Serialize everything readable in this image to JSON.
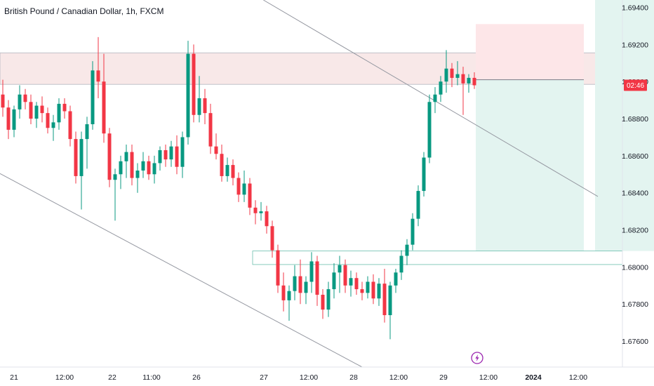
{
  "header": {
    "title": "British Pound / Canadian Dollar, 1h, FXCM"
  },
  "colors": {
    "up": "#089981",
    "down": "#f23645",
    "trendline": "#9598a1",
    "zone_fill": "#f8e8e8",
    "zone_border": "#b2b5be",
    "stop_fill": "#fde6e8",
    "target_fill": "#e3f4f0",
    "demand_border": "#6bbfae",
    "price_tag": "#f23645",
    "event_icon": "#9c27b0"
  },
  "chart_data": {
    "type": "candlestick",
    "symbol": "British Pound / Canadian Dollar",
    "interval": "1h",
    "source": "FXCM",
    "ylim": [
      1.6746,
      1.6944
    ],
    "y_ticks": [
      "1.69400",
      "1.69200",
      "1.69000",
      "1.68800",
      "1.68600",
      "1.68400",
      "1.68200",
      "1.68000",
      "1.67800",
      "1.67600"
    ],
    "x_ticks": [
      {
        "label": "21",
        "bar": 2,
        "bold": false
      },
      {
        "label": "12:00",
        "bar": 11,
        "bold": false
      },
      {
        "label": "22",
        "bar": 19.5,
        "bold": false
      },
      {
        "label": "11:00",
        "bar": 26.5,
        "bold": false
      },
      {
        "label": "26",
        "bar": 34.5,
        "bold": false
      },
      {
        "label": "27",
        "bar": 46.5,
        "bold": false
      },
      {
        "label": "12:00",
        "bar": 54.5,
        "bold": false
      },
      {
        "label": "28",
        "bar": 62.5,
        "bold": false
      },
      {
        "label": "12:00",
        "bar": 70.5,
        "bold": false
      },
      {
        "label": "29",
        "bar": 78.5,
        "bold": false
      },
      {
        "label": "12:00",
        "bar": 86.5,
        "bold": false
      },
      {
        "label": "2024",
        "bar": 94.5,
        "bold": true
      },
      {
        "label": "12:00",
        "bar": 102.5,
        "bold": false
      }
    ],
    "current_price_label": "02:46",
    "current_price": 1.6898,
    "candles": [
      [
        1.6893,
        1.6901,
        1.6881,
        1.6886
      ],
      [
        1.6886,
        1.689,
        1.6869,
        1.6874
      ],
      [
        1.6874,
        1.6887,
        1.687,
        1.6885
      ],
      [
        1.6885,
        1.6898,
        1.688,
        1.6893
      ],
      [
        1.6893,
        1.6896,
        1.6885,
        1.6889
      ],
      [
        1.6889,
        1.6893,
        1.6877,
        1.688
      ],
      [
        1.688,
        1.6889,
        1.6875,
        1.6887
      ],
      [
        1.6887,
        1.6892,
        1.6878,
        1.6883
      ],
      [
        1.6883,
        1.6886,
        1.6872,
        1.6875
      ],
      [
        1.6875,
        1.6882,
        1.6868,
        1.6878
      ],
      [
        1.6878,
        1.6891,
        1.6874,
        1.6888
      ],
      [
        1.6888,
        1.6891,
        1.688,
        1.6884
      ],
      [
        1.6884,
        1.6887,
        1.6865,
        1.6869
      ],
      [
        1.6869,
        1.6873,
        1.6845,
        1.6849
      ],
      [
        1.6849,
        1.6873,
        1.6831,
        1.6869
      ],
      [
        1.6869,
        1.6881,
        1.6853,
        1.6877
      ],
      [
        1.6877,
        1.6911,
        1.6874,
        1.6906
      ],
      [
        1.6906,
        1.6924,
        1.6891,
        1.69
      ],
      [
        1.69,
        1.6915,
        1.6867,
        1.6872
      ],
      [
        1.6872,
        1.6875,
        1.6843,
        1.6847
      ],
      [
        1.6847,
        1.6853,
        1.6825,
        1.685
      ],
      [
        1.685,
        1.686,
        1.6842,
        1.6857
      ],
      [
        1.6857,
        1.6866,
        1.6848,
        1.6862
      ],
      [
        1.6862,
        1.6866,
        1.6844,
        1.6848
      ],
      [
        1.6848,
        1.6856,
        1.684,
        1.6852
      ],
      [
        1.6852,
        1.6862,
        1.6848,
        1.6857
      ],
      [
        1.6857,
        1.686,
        1.6847,
        1.685
      ],
      [
        1.685,
        1.686,
        1.6845,
        1.6856
      ],
      [
        1.6856,
        1.6865,
        1.6852,
        1.6863
      ],
      [
        1.6863,
        1.6866,
        1.6854,
        1.6858
      ],
      [
        1.6858,
        1.6868,
        1.6854,
        1.6865
      ],
      [
        1.6865,
        1.6871,
        1.685,
        1.6854
      ],
      [
        1.6854,
        1.6873,
        1.6848,
        1.687
      ],
      [
        1.687,
        1.6922,
        1.6866,
        1.6915
      ],
      [
        1.6915,
        1.692,
        1.6878,
        1.6882
      ],
      [
        1.6882,
        1.6903,
        1.6878,
        1.6891
      ],
      [
        1.6891,
        1.6896,
        1.6877,
        1.6883
      ],
      [
        1.6883,
        1.6888,
        1.6861,
        1.6865
      ],
      [
        1.6865,
        1.6872,
        1.6858,
        1.6861
      ],
      [
        1.6861,
        1.6866,
        1.6846,
        1.6849
      ],
      [
        1.6849,
        1.6859,
        1.6846,
        1.6855
      ],
      [
        1.6855,
        1.6858,
        1.6844,
        1.6848
      ],
      [
        1.6848,
        1.6851,
        1.6835,
        1.6839
      ],
      [
        1.6839,
        1.6852,
        1.6835,
        1.6845
      ],
      [
        1.6845,
        1.6848,
        1.6828,
        1.6832
      ],
      [
        1.6832,
        1.6836,
        1.6823,
        1.6829
      ],
      [
        1.6829,
        1.6835,
        1.6825,
        1.683
      ],
      [
        1.683,
        1.6833,
        1.6818,
        1.6822
      ],
      [
        1.6822,
        1.6825,
        1.6805,
        1.6809
      ],
      [
        1.6809,
        1.6812,
        1.6786,
        1.679
      ],
      [
        1.679,
        1.6797,
        1.6776,
        1.6782
      ],
      [
        1.6782,
        1.679,
        1.6771,
        1.6787
      ],
      [
        1.6787,
        1.6801,
        1.6782,
        1.6795
      ],
      [
        1.6795,
        1.6804,
        1.678,
        1.6786
      ],
      [
        1.6786,
        1.6795,
        1.678,
        1.6792
      ],
      [
        1.6792,
        1.6808,
        1.6786,
        1.6803
      ],
      [
        1.6803,
        1.6806,
        1.6779,
        1.6785
      ],
      [
        1.6785,
        1.6788,
        1.6772,
        1.6777
      ],
      [
        1.6777,
        1.6792,
        1.6773,
        1.6788
      ],
      [
        1.6788,
        1.6802,
        1.6783,
        1.6797
      ],
      [
        1.6797,
        1.6806,
        1.6786,
        1.6801
      ],
      [
        1.6801,
        1.6804,
        1.6786,
        1.679
      ],
      [
        1.679,
        1.6798,
        1.6784,
        1.6794
      ],
      [
        1.6794,
        1.6797,
        1.6785,
        1.6788
      ],
      [
        1.6788,
        1.6792,
        1.6782,
        1.6786
      ],
      [
        1.6786,
        1.6795,
        1.6783,
        1.6792
      ],
      [
        1.6792,
        1.6796,
        1.678,
        1.6783
      ],
      [
        1.6783,
        1.6794,
        1.6779,
        1.6791
      ],
      [
        1.6791,
        1.6799,
        1.677,
        1.6774
      ],
      [
        1.6774,
        1.6792,
        1.6761,
        1.679
      ],
      [
        1.679,
        1.6799,
        1.6786,
        1.6797
      ],
      [
        1.6797,
        1.6809,
        1.6793,
        1.6806
      ],
      [
        1.6806,
        1.6815,
        1.6801,
        1.6812
      ],
      [
        1.6812,
        1.6829,
        1.6809,
        1.6826
      ],
      [
        1.6826,
        1.6844,
        1.6822,
        1.6841
      ],
      [
        1.6841,
        1.6862,
        1.6838,
        1.6859
      ],
      [
        1.6859,
        1.6893,
        1.6856,
        1.6889
      ],
      [
        1.6889,
        1.6897,
        1.6883,
        1.6893
      ],
      [
        1.6893,
        1.6903,
        1.6889,
        1.69
      ],
      [
        1.69,
        1.6917,
        1.6894,
        1.6907
      ],
      [
        1.6907,
        1.691,
        1.6897,
        1.6902
      ],
      [
        1.6902,
        1.6911,
        1.6898,
        1.6904
      ],
      [
        1.6904,
        1.6908,
        1.6882,
        1.6899
      ],
      [
        1.6899,
        1.6904,
        1.6894,
        1.6902
      ],
      [
        1.6902,
        1.6905,
        1.6896,
        1.6898
      ]
    ],
    "zones": [
      {
        "name": "supply-zone",
        "y1": 1.69155,
        "y2": 1.68985
      },
      {
        "name": "demand-zone",
        "y1": 1.68086,
        "y2": 1.68013
      }
    ],
    "position": {
      "entry": 1.6901,
      "stop": 1.6931,
      "target": 1.68086
    },
    "trendlines": [
      {
        "name": "upper-trendline",
        "p1": {
          "bar": 20,
          "price": 1.6991
        },
        "p2": {
          "bar": 106,
          "price": 1.6838
        }
      },
      {
        "name": "lower-trendline",
        "p1": {
          "bar": -1.5,
          "price": 1.6852
        },
        "p2": {
          "bar": 64,
          "price": 1.6746
        }
      }
    ]
  }
}
